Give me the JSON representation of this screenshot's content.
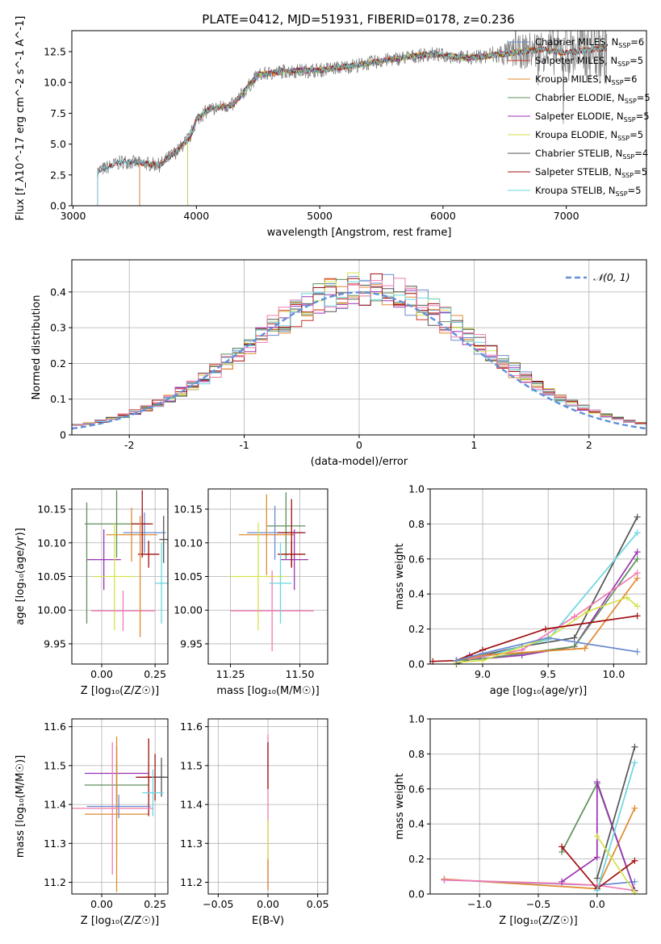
{
  "figure": {
    "title": "PLATE=0412, MJD=51931, FIBERID=0178, z=0.236"
  },
  "series_colors": {
    "Chabrier MILES": "#6a8ad0",
    "Salpeter MILES": "#c9332b",
    "Kroupa MILES": "#e08a2e",
    "Chabrier ELODIE": "#5f8f5c",
    "Salpeter ELODIE": "#9b33b4",
    "Kroupa ELODIE": "#d4e24a",
    "Chabrier STELIB": "#555555",
    "Salpeter STELIB": "#a01010",
    "Kroupa STELIB": "#6ad6e0",
    "Extra": "#f07cb3"
  },
  "chart_data": [
    {
      "id": "spectrum",
      "type": "line",
      "xlabel": "wavelength [Angstrom, rest frame]",
      "ylabel": "Flux [f_λ10^-17 erg cm^-2 s^-1 A^-1]",
      "xlim": [
        2990,
        7650
      ],
      "ylim": [
        0,
        14.2
      ],
      "xticks": [
        3000,
        4000,
        5000,
        6000,
        7000
      ],
      "yticks": [
        0.0,
        2.5,
        5.0,
        7.5,
        10.0,
        12.5
      ],
      "ytick_labels": [
        "0.0",
        "2.5",
        "5.0",
        "7.5",
        "10.0",
        "12.5"
      ],
      "legend_position": "right",
      "series": [
        {
          "name": "Chabrier MILES",
          "legend_label": "Chabrier MILES, N",
          "nssp": "6"
        },
        {
          "name": "Salpeter MILES",
          "legend_label": "Salpeter MILES, N",
          "nssp": "5"
        },
        {
          "name": "Kroupa MILES",
          "legend_label": "Kroupa MILES, N",
          "nssp": "6"
        },
        {
          "name": "Chabrier ELODIE",
          "legend_label": "Chabrier ELODIE, N",
          "nssp": "5"
        },
        {
          "name": "Salpeter ELODIE",
          "legend_label": "Salpeter ELODIE, N",
          "nssp": "5"
        },
        {
          "name": "Kroupa ELODIE",
          "legend_label": "Kroupa ELODIE, N",
          "nssp": "5"
        },
        {
          "name": "Chabrier STELIB",
          "legend_label": "Chabrier STELIB, N",
          "nssp": "4"
        },
        {
          "name": "Salpeter STELIB",
          "legend_label": "Salpeter STELIB, N",
          "nssp": "5"
        },
        {
          "name": "Kroupa STELIB",
          "legend_label": "Kroupa STELIB, N",
          "nssp": "5"
        }
      ],
      "continuum": [
        [
          3200,
          2.8
        ],
        [
          3400,
          3.6
        ],
        [
          3700,
          3.3
        ],
        [
          3850,
          4.5
        ],
        [
          3950,
          5.6
        ],
        [
          4000,
          7.0
        ],
        [
          4100,
          7.8
        ],
        [
          4300,
          8.2
        ],
        [
          4500,
          10.6
        ],
        [
          4700,
          10.9
        ],
        [
          5000,
          11.0
        ],
        [
          5300,
          11.4
        ],
        [
          5600,
          11.9
        ],
        [
          5900,
          12.3
        ],
        [
          6200,
          12.0
        ],
        [
          6500,
          12.3
        ],
        [
          6800,
          12.7
        ],
        [
          7000,
          12.4
        ],
        [
          7300,
          12.8
        ]
      ]
    },
    {
      "id": "residuals",
      "type": "line",
      "xlabel": "(data-model)/error",
      "ylabel": "Normed distribution",
      "xlim": [
        -2.5,
        2.5
      ],
      "ylim": [
        0,
        0.49
      ],
      "xticks": [
        -2,
        -1,
        0,
        1,
        2
      ],
      "yticks": [
        0.0,
        0.1,
        0.2,
        0.3,
        0.4
      ],
      "legend_label": "𝒩(0, 1)",
      "legend_position": "top-right",
      "gaussian": {
        "mean": 0,
        "sigma": 1
      }
    },
    {
      "id": "age_vs_z",
      "type": "scatter",
      "xlabel": "Z [log₁₀(Z/Z☉)]",
      "ylabel": "age  [log₁₀(age/yr)]",
      "xlim": [
        -0.14,
        0.31
      ],
      "ylim": [
        9.92,
        10.18
      ],
      "xticks": [
        0.0,
        0.25
      ],
      "xtick_labels": [
        "0.00",
        "0.25"
      ],
      "yticks": [
        9.95,
        10.0,
        10.05,
        10.1,
        10.15
      ],
      "ytick_labels": [
        "9.95",
        "10.00",
        "10.05",
        "10.10",
        "10.15"
      ],
      "points": [
        {
          "series": "Chabrier ELODIE",
          "x": 0.07,
          "y": 10.128,
          "xerr": 0.15,
          "yerr": 0.05
        },
        {
          "series": "Chabrier MILES",
          "x": 0.2,
          "y": 10.115,
          "xerr": 0.1,
          "yerr": 0.03
        },
        {
          "series": "Kroupa MILES",
          "x": 0.14,
          "y": 10.112,
          "xerr": 0.12,
          "yerr": 0.04
        },
        {
          "series": "Salpeter STELIB",
          "x": 0.19,
          "y": 10.128,
          "xerr": 0.05,
          "yerr": 0.05
        },
        {
          "series": "Salpeter ELODIE",
          "x": 0.01,
          "y": 10.075,
          "xerr": 0.08,
          "yerr": 0.045
        },
        {
          "series": "Salpeter STELIB",
          "x": 0.22,
          "y": 10.083,
          "xerr": 0.05,
          "yerr": 0.02
        },
        {
          "series": "Kroupa ELODIE",
          "x": 0.06,
          "y": 10.05,
          "xerr": 0.1,
          "yerr": 0.08
        },
        {
          "series": "Extra",
          "x": 0.1,
          "y": 9.999,
          "xerr": 0.15,
          "yerr": 0.03
        },
        {
          "series": "Kroupa STELIB",
          "x": 0.28,
          "y": 10.04,
          "xerr": 0.03,
          "yerr": 0.06
        },
        {
          "series": "Chabrier STELIB",
          "x": 0.29,
          "y": 10.105,
          "xerr": 0.02,
          "yerr": 0.035
        },
        {
          "series": "Chabrier ELODIE",
          "x": -0.07,
          "y": 10.07,
          "xerr": 0.0,
          "yerr": 0.09
        },
        {
          "series": "Kroupa MILES",
          "x": 0.18,
          "y": 10.05,
          "xerr": 0.0,
          "yerr": 0.09
        }
      ]
    },
    {
      "id": "age_vs_mass",
      "type": "scatter",
      "xlabel": "mass [log₁₀(M/M☉)]",
      "xlim": [
        11.17,
        11.6
      ],
      "ylim": [
        9.92,
        10.18
      ],
      "xticks": [
        11.25,
        11.5
      ],
      "xtick_labels": [
        "11.25",
        "11.50"
      ],
      "yticks": [
        9.95,
        10.0,
        10.05,
        10.1,
        10.15
      ],
      "ytick_labels": [
        "9.95",
        "10.00",
        "10.05",
        "10.10",
        "10.15"
      ],
      "points": [
        {
          "series": "Chabrier ELODIE",
          "x": 11.45,
          "y": 10.125,
          "xerr": 0.07,
          "yerr": 0.05
        },
        {
          "series": "Chabrier MILES",
          "x": 11.41,
          "y": 10.115,
          "xerr": 0.1,
          "yerr": 0.04
        },
        {
          "series": "Kroupa MILES",
          "x": 11.38,
          "y": 10.112,
          "xerr": 0.1,
          "yerr": 0.06
        },
        {
          "series": "Salpeter STELIB",
          "x": 11.47,
          "y": 10.115,
          "xerr": 0.05,
          "yerr": 0.05
        },
        {
          "series": "Salpeter ELODIE",
          "x": 11.48,
          "y": 10.075,
          "xerr": 0.05,
          "yerr": 0.045
        },
        {
          "series": "Salpeter STELIB",
          "x": 11.47,
          "y": 10.083,
          "xerr": 0.05,
          "yerr": 0.02
        },
        {
          "series": "Kroupa ELODIE",
          "x": 11.35,
          "y": 10.05,
          "xerr": 0.1,
          "yerr": 0.08
        },
        {
          "series": "Extra",
          "x": 11.4,
          "y": 9.999,
          "xerr": 0.15,
          "yerr": 0.06
        },
        {
          "series": "Kroupa STELIB",
          "x": 11.43,
          "y": 10.04,
          "xerr": 0.04,
          "yerr": 0.06
        }
      ]
    },
    {
      "id": "mass_weight_vs_age",
      "type": "line",
      "xlabel": "age  [log₁₀(age/yr)]",
      "ylabel": "mass weight",
      "xlim": [
        8.6,
        10.25
      ],
      "ylim": [
        0,
        1.0
      ],
      "xticks": [
        9.0,
        9.5,
        10.0
      ],
      "xtick_labels": [
        "9.0",
        "9.5",
        "10.0"
      ],
      "yticks": [
        0.0,
        0.2,
        0.4,
        0.6,
        0.8,
        1.0
      ],
      "ytick_labels": [
        "0.0",
        "0.2",
        "0.4",
        "0.6",
        "0.8",
        "1.0"
      ],
      "series": [
        {
          "name": "Chabrier STELIB",
          "x": [
            8.8,
            9.0,
            9.3,
            9.7,
            10.18
          ],
          "y": [
            0.0,
            0.05,
            0.1,
            0.15,
            0.84
          ]
        },
        {
          "name": "Kroupa STELIB",
          "x": [
            8.8,
            9.0,
            9.5,
            10.18
          ],
          "y": [
            0.02,
            0.04,
            0.14,
            0.75
          ]
        },
        {
          "name": "Salpeter ELODIE",
          "x": [
            8.8,
            8.9,
            9.0,
            9.3,
            9.7,
            10.18
          ],
          "y": [
            0.02,
            0.05,
            0.03,
            0.05,
            0.1,
            0.64
          ]
        },
        {
          "name": "Chabrier ELODIE",
          "x": [
            8.8,
            9.0,
            9.7,
            10.18
          ],
          "y": [
            0.02,
            0.03,
            0.1,
            0.6
          ]
        },
        {
          "name": "Extra",
          "x": [
            8.9,
            9.3,
            9.7,
            10.18
          ],
          "y": [
            0.03,
            0.08,
            0.27,
            0.52
          ]
        },
        {
          "name": "Kroupa MILES",
          "x": [
            8.8,
            9.0,
            9.78,
            10.18
          ],
          "y": [
            0.02,
            0.05,
            0.09,
            0.49
          ]
        },
        {
          "name": "Kroupa ELODIE",
          "x": [
            8.8,
            9.0,
            9.5,
            9.8,
            10.1,
            10.18
          ],
          "y": [
            0.01,
            0.02,
            0.15,
            0.3,
            0.38,
            0.33
          ]
        },
        {
          "name": "Salpeter STELIB",
          "x": [
            8.62,
            8.8,
            9.0,
            9.48,
            10.18
          ],
          "y": [
            0.015,
            0.02,
            0.08,
            0.2,
            0.275
          ]
        },
        {
          "name": "Chabrier MILES",
          "x": [
            8.8,
            9.0,
            9.5,
            10.18
          ],
          "y": [
            0.02,
            0.06,
            0.15,
            0.07
          ]
        }
      ]
    },
    {
      "id": "mass_vs_z",
      "type": "scatter",
      "xlabel": "Z [log₁₀(Z/Z☉)]",
      "ylabel": "mass [log₁₀(M/M☉)]",
      "xlim": [
        -0.14,
        0.31
      ],
      "ylim": [
        11.17,
        11.62
      ],
      "xticks": [
        0.0,
        0.25
      ],
      "xtick_labels": [
        "0.00",
        "0.25"
      ],
      "yticks": [
        11.2,
        11.3,
        11.4,
        11.5,
        11.6
      ],
      "ytick_labels": [
        "11.2",
        "11.3",
        "11.4",
        "11.5",
        "11.6"
      ],
      "points": [
        {
          "series": "Chabrier ELODIE",
          "x": 0.07,
          "y": 11.45,
          "xerr": 0.15,
          "yerr": 0.06
        },
        {
          "series": "Salpeter ELODIE",
          "x": 0.07,
          "y": 11.48,
          "xerr": 0.15,
          "yerr": 0.07
        },
        {
          "series": "Kroupa ELODIE",
          "x": 0.07,
          "y": 11.39,
          "xerr": 0.12,
          "yerr": 0.13
        },
        {
          "series": "Kroupa MILES",
          "x": 0.07,
          "y": 11.375,
          "xerr": 0.15,
          "yerr": 0.2
        },
        {
          "series": "Salpeter STELIB",
          "x": 0.25,
          "y": 11.47,
          "xerr": 0.05,
          "yerr": 0.06
        },
        {
          "series": "Salpeter STELIB",
          "x": 0.22,
          "y": 11.47,
          "xerr": 0.06,
          "yerr": 0.1
        },
        {
          "series": "Chabrier STELIB",
          "x": 0.28,
          "y": 11.47,
          "xerr": 0.03,
          "yerr": 0.05
        },
        {
          "series": "Kroupa STELIB",
          "x": 0.24,
          "y": 11.43,
          "xerr": 0.05,
          "yerr": 0.06
        },
        {
          "series": "Chabrier MILES",
          "x": 0.08,
          "y": 11.395,
          "xerr": 0.15,
          "yerr": 0.03
        },
        {
          "series": "Extra",
          "x": 0.05,
          "y": 11.39,
          "xerr": 0.19,
          "yerr": 0.17
        }
      ]
    },
    {
      "id": "mass_vs_ebv",
      "type": "scatter",
      "xlabel": "E(B-V)",
      "xlim": [
        -0.06,
        0.06
      ],
      "ylim": [
        11.17,
        11.62
      ],
      "xticks": [
        -0.05,
        0.0,
        0.05
      ],
      "xtick_labels": [
        "−0.05",
        "0.00",
        "0.05"
      ],
      "yticks": [
        11.2,
        11.3,
        11.4,
        11.5,
        11.6
      ],
      "ytick_labels": [
        "11.2",
        "11.3",
        "11.4",
        "11.5",
        "11.6"
      ],
      "points": [
        {
          "series": "Extra",
          "x": 0.0,
          "y": 11.38,
          "xerr": 0.0,
          "yerr": 0.2
        },
        {
          "series": "Salpeter STELIB",
          "x": 0.0,
          "y": 11.5,
          "xerr": 0.0,
          "yerr": 0.06
        },
        {
          "series": "Kroupa ELODIE",
          "x": 0.0,
          "y": 11.3,
          "xerr": 0.0,
          "yerr": 0.06
        },
        {
          "series": "Kroupa MILES",
          "x": 0.0,
          "y": 11.22,
          "xerr": 0.0,
          "yerr": 0.04
        }
      ]
    },
    {
      "id": "mass_weight_vs_z",
      "type": "line",
      "xlabel": "Z [log₁₀(Z/Z☉)]",
      "ylabel": "mass weight",
      "xlim": [
        -1.42,
        0.42
      ],
      "ylim": [
        0,
        1.0
      ],
      "xticks": [
        -1.0,
        -0.5,
        0.0
      ],
      "xtick_labels": [
        "−1.0",
        "−0.5",
        "0.0"
      ],
      "yticks": [
        0.0,
        0.2,
        0.4,
        0.6,
        0.8,
        1.0
      ],
      "ytick_labels": [
        "0.0",
        "0.2",
        "0.4",
        "0.6",
        "0.8",
        "1.0"
      ],
      "series": [
        {
          "name": "Kroupa MILES",
          "x": [
            -1.3,
            0.0,
            0.32
          ],
          "y": [
            0.085,
            0.03,
            0.49
          ]
        },
        {
          "name": "Chabrier MILES",
          "x": [
            -1.3,
            0.0,
            0.32
          ],
          "y": [
            0.08,
            0.05,
            0.07
          ]
        },
        {
          "name": "Extra",
          "x": [
            -1.3,
            -0.3,
            0.0,
            0.32
          ],
          "y": [
            0.08,
            0.06,
            0.05,
            0.02
          ]
        },
        {
          "name": "Chabrier ELODIE",
          "x": [
            -0.3,
            0.0,
            0.32
          ],
          "y": [
            0.24,
            0.63,
            0.02
          ]
        },
        {
          "name": "Salpeter ELODIE",
          "x": [
            -0.3,
            0.0,
            0.0,
            0.32
          ],
          "y": [
            0.07,
            0.21,
            0.64,
            0.02
          ]
        },
        {
          "name": "Salpeter STELIB",
          "x": [
            -0.3,
            0.0,
            0.32
          ],
          "y": [
            0.27,
            0.03,
            0.19
          ]
        },
        {
          "name": "Chabrier STELIB",
          "x": [
            0.0,
            0.32
          ],
          "y": [
            0.09,
            0.84
          ]
        },
        {
          "name": "Kroupa STELIB",
          "x": [
            0.0,
            0.32
          ],
          "y": [
            0.02,
            0.75
          ]
        },
        {
          "name": "Kroupa ELODIE",
          "x": [
            0.0,
            0.32
          ],
          "y": [
            0.33,
            0.01
          ]
        }
      ]
    }
  ]
}
